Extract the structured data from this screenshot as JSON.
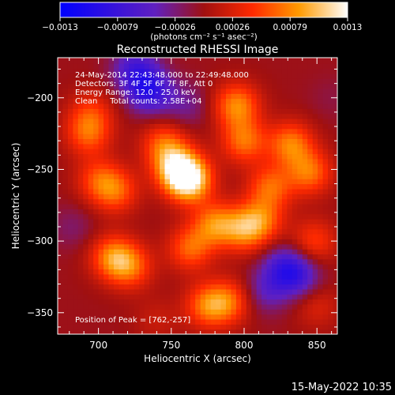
{
  "chart_data": {
    "type": "heatmap",
    "title": "Reconstructed RHESSI Image",
    "xlabel": "Heliocentric X (arcsec)",
    "ylabel": "Heliocentric Y (arcsec)",
    "xlim": [
      672,
      864
    ],
    "ylim": [
      -365,
      -172
    ],
    "xticks": [
      700,
      750,
      800,
      850
    ],
    "yticks": [
      -200,
      -250,
      -300,
      -350
    ],
    "colorbar": {
      "range": [
        -0.0013,
        0.0013
      ],
      "tick_labels": [
        "-0.0013",
        "-0.00079",
        "-0.00026",
        "0.00026",
        "0.00079",
        "0.0013"
      ],
      "units_label": "(photons cm⁻² s⁻¹ asec⁻²)",
      "colormap": [
        "#0000ff",
        "#6020c0",
        "#a01010",
        "#ff2a00",
        "#ff9a00",
        "#ffffff"
      ]
    },
    "peak": [
      762,
      -257
    ],
    "sources": [
      {
        "x": 762,
        "y": -257,
        "value": 0.0013
      },
      {
        "x": 753,
        "y": -248,
        "value": 0.00085
      },
      {
        "x": 745,
        "y": -232,
        "value": 0.0006
      },
      {
        "x": 780,
        "y": -288,
        "value": 0.00075
      },
      {
        "x": 800,
        "y": -292,
        "value": 0.0007
      },
      {
        "x": 763,
        "y": -305,
        "value": 0.00065
      },
      {
        "x": 710,
        "y": -311,
        "value": 0.00075
      },
      {
        "x": 722,
        "y": -318,
        "value": 0.0006
      },
      {
        "x": 775,
        "y": -345,
        "value": 0.0007
      },
      {
        "x": 790,
        "y": -342,
        "value": 0.0006
      },
      {
        "x": 712,
        "y": -265,
        "value": 0.0006
      },
      {
        "x": 700,
        "y": -257,
        "value": 0.0005
      },
      {
        "x": 693,
        "y": -225,
        "value": 0.0006
      },
      {
        "x": 695,
        "y": -210,
        "value": 0.0004
      },
      {
        "x": 795,
        "y": -205,
        "value": 0.0008
      },
      {
        "x": 800,
        "y": -230,
        "value": 0.0007
      },
      {
        "x": 832,
        "y": -232,
        "value": 0.00075
      },
      {
        "x": 845,
        "y": -252,
        "value": 0.0007
      },
      {
        "x": 818,
        "y": -262,
        "value": 0.00065
      },
      {
        "x": 812,
        "y": -285,
        "value": 0.0006
      },
      {
        "x": 848,
        "y": -300,
        "value": 0.0005
      },
      {
        "x": 850,
        "y": -345,
        "value": 0.0003
      },
      {
        "x": 740,
        "y": -355,
        "value": 0.0002
      },
      {
        "x": 735,
        "y": -195,
        "value": -0.0008
      },
      {
        "x": 725,
        "y": -180,
        "value": -0.0006
      },
      {
        "x": 828,
        "y": -318,
        "value": -0.0006
      },
      {
        "x": 838,
        "y": -325,
        "value": -0.0005
      },
      {
        "x": 815,
        "y": -335,
        "value": -0.0004
      },
      {
        "x": 760,
        "y": -205,
        "value": -0.0003
      },
      {
        "x": 682,
        "y": -290,
        "value": -0.0002
      },
      {
        "x": 860,
        "y": -200,
        "value": -0.0001
      }
    ]
  },
  "info": {
    "time_range": "24-May-2014 22:43:48.000 to 22:49:48.000",
    "detectors": "Detectors: 3F 4F 5F 6F 7F 8F, Att 0",
    "energy": "Energy Range: 12.0 - 25.0 keV",
    "clean": "Clean     Total counts: 2.58E+04",
    "peak_position": "Position of Peak = [762,-257]"
  },
  "footer": {
    "timestamp": "15-May-2022 10:35"
  }
}
